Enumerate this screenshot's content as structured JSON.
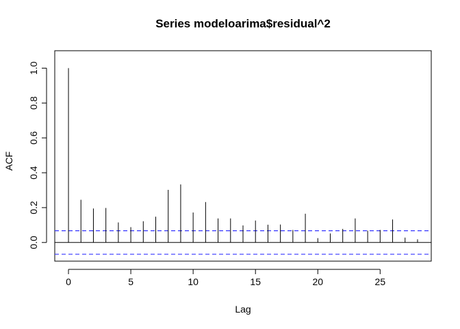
{
  "chart_data": {
    "type": "bar",
    "title": "Series  modeloarima$residual^2",
    "xlabel": "Lag",
    "ylabel": "ACF",
    "xlim": [
      -1.1,
      29.1
    ],
    "ylim": [
      -0.107,
      1.1
    ],
    "x_ticks": [
      0,
      5,
      10,
      15,
      20,
      25
    ],
    "y_ticks": [
      0.0,
      0.2,
      0.4,
      0.6,
      0.8,
      1.0
    ],
    "x_tick_labels": [
      "0",
      "5",
      "10",
      "15",
      "20",
      "25"
    ],
    "y_tick_labels": [
      "0.0",
      "0.2",
      "0.4",
      "0.6",
      "0.8",
      "1.0"
    ],
    "lags": [
      0,
      1,
      2,
      3,
      4,
      5,
      6,
      7,
      8,
      9,
      10,
      11,
      12,
      13,
      14,
      15,
      16,
      17,
      18,
      19,
      20,
      21,
      22,
      23,
      24,
      25,
      26,
      27,
      28
    ],
    "acf": [
      1.0,
      0.245,
      0.195,
      0.198,
      0.115,
      0.088,
      0.122,
      0.148,
      0.302,
      0.333,
      0.172,
      0.232,
      0.138,
      0.138,
      0.098,
      0.126,
      0.102,
      0.103,
      0.072,
      0.165,
      0.025,
      0.052,
      0.078,
      0.138,
      0.068,
      0.072,
      0.132,
      0.028,
      0.018
    ],
    "confidence_bound": 0.0675,
    "confidence_color": "#3333ff",
    "grid": false,
    "legend": "none"
  }
}
